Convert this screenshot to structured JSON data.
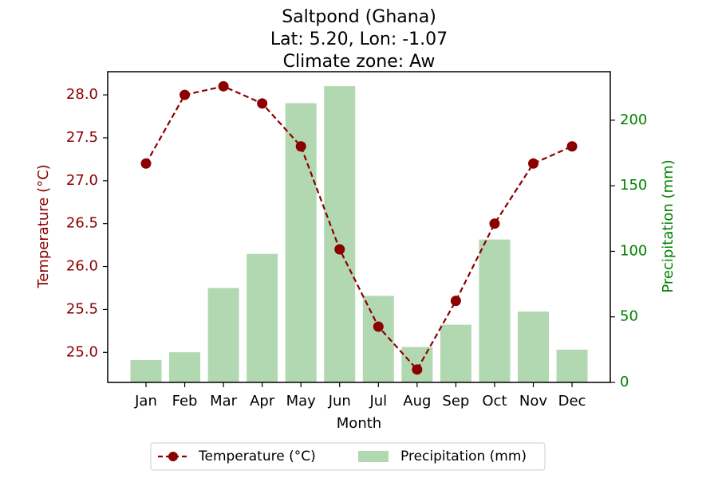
{
  "chart_data": {
    "type": "bar+line",
    "title_lines": [
      "Saltpond (Ghana)",
      "Lat: 5.20, Lon: -1.07",
      "Climate zone: Aw"
    ],
    "xlabel": "Month",
    "categories": [
      "Jan",
      "Feb",
      "Mar",
      "Apr",
      "May",
      "Jun",
      "Jul",
      "Aug",
      "Sep",
      "Oct",
      "Nov",
      "Dec"
    ],
    "series": [
      {
        "name": "Temperature (°C)",
        "kind": "line",
        "axis": "left",
        "color": "#8b0000",
        "values": [
          27.2,
          28.0,
          28.1,
          27.9,
          27.4,
          26.2,
          25.3,
          24.8,
          25.6,
          26.5,
          27.2,
          27.4
        ]
      },
      {
        "name": "Precipitation (mm)",
        "kind": "bar",
        "axis": "right",
        "color": "#b2d8b2",
        "values": [
          17,
          23,
          72,
          98,
          213,
          226,
          66,
          27,
          44,
          109,
          54,
          25
        ]
      }
    ],
    "y_left": {
      "label": "Temperature (°C)",
      "color": "#8b0000",
      "range": [
        24.65,
        28.27
      ],
      "ticks": [
        25.0,
        25.5,
        26.0,
        26.5,
        27.0,
        27.5,
        28.0
      ],
      "tick_labels": [
        "25.0",
        "25.5",
        "26.0",
        "26.5",
        "27.0",
        "27.5",
        "28.0"
      ]
    },
    "y_right": {
      "label": "Precipitation (mm)",
      "color": "#008000",
      "range": [
        0,
        237
      ],
      "ticks": [
        0,
        50,
        100,
        150,
        200
      ],
      "tick_labels": [
        "0",
        "50",
        "100",
        "150",
        "200"
      ]
    },
    "grid": false,
    "legend_placement": "bottom-center"
  }
}
